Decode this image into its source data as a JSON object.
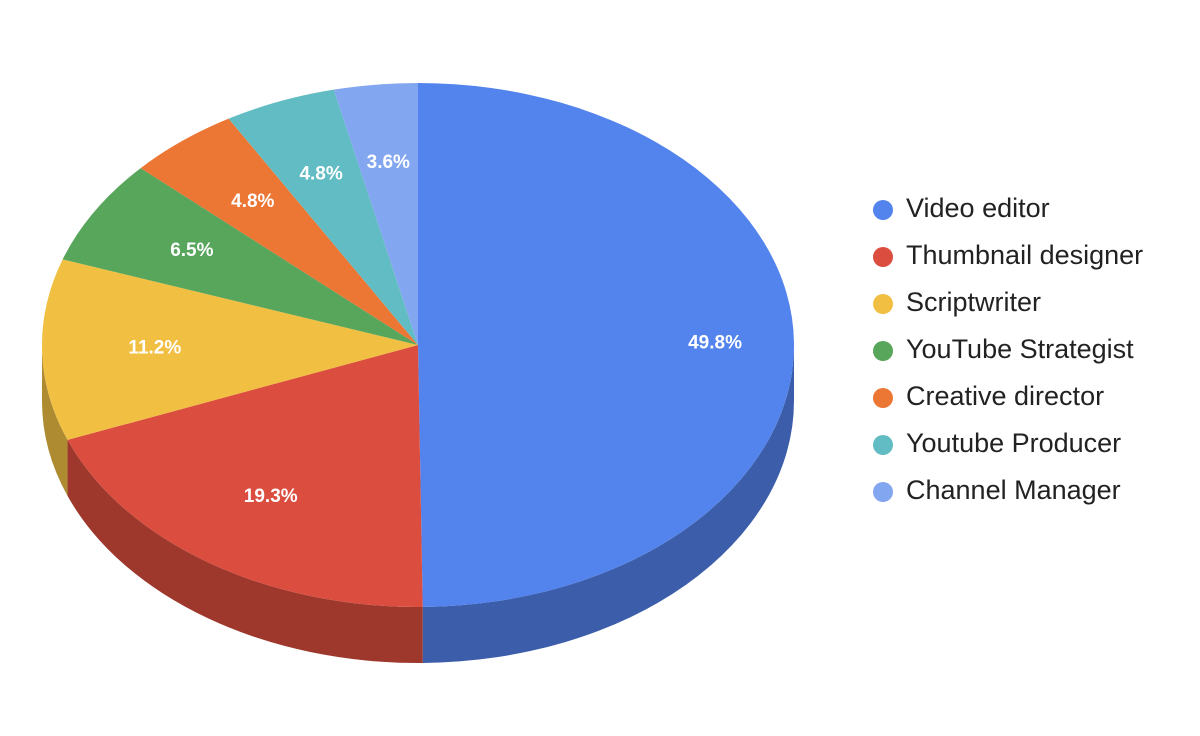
{
  "chart_data": {
    "type": "pie",
    "categories": [
      "Video editor",
      "Thumbnail designer",
      "Scriptwriter",
      "YouTube Strategist",
      "Creative director",
      "Youtube Producer",
      "Channel Manager"
    ],
    "values": [
      49.8,
      19.3,
      11.2,
      6.5,
      4.8,
      4.8,
      3.6
    ],
    "value_labels": [
      "49.8%",
      "19.3%",
      "11.2%",
      "6.5%",
      "4.8%",
      "4.8%",
      "3.6%"
    ],
    "colors": [
      "#5383ec",
      "#db4e3f",
      "#f1bf42",
      "#58a55c",
      "#ec7634",
      "#62bcc3",
      "#83a6f0"
    ],
    "legend": "right",
    "three_d": true
  }
}
